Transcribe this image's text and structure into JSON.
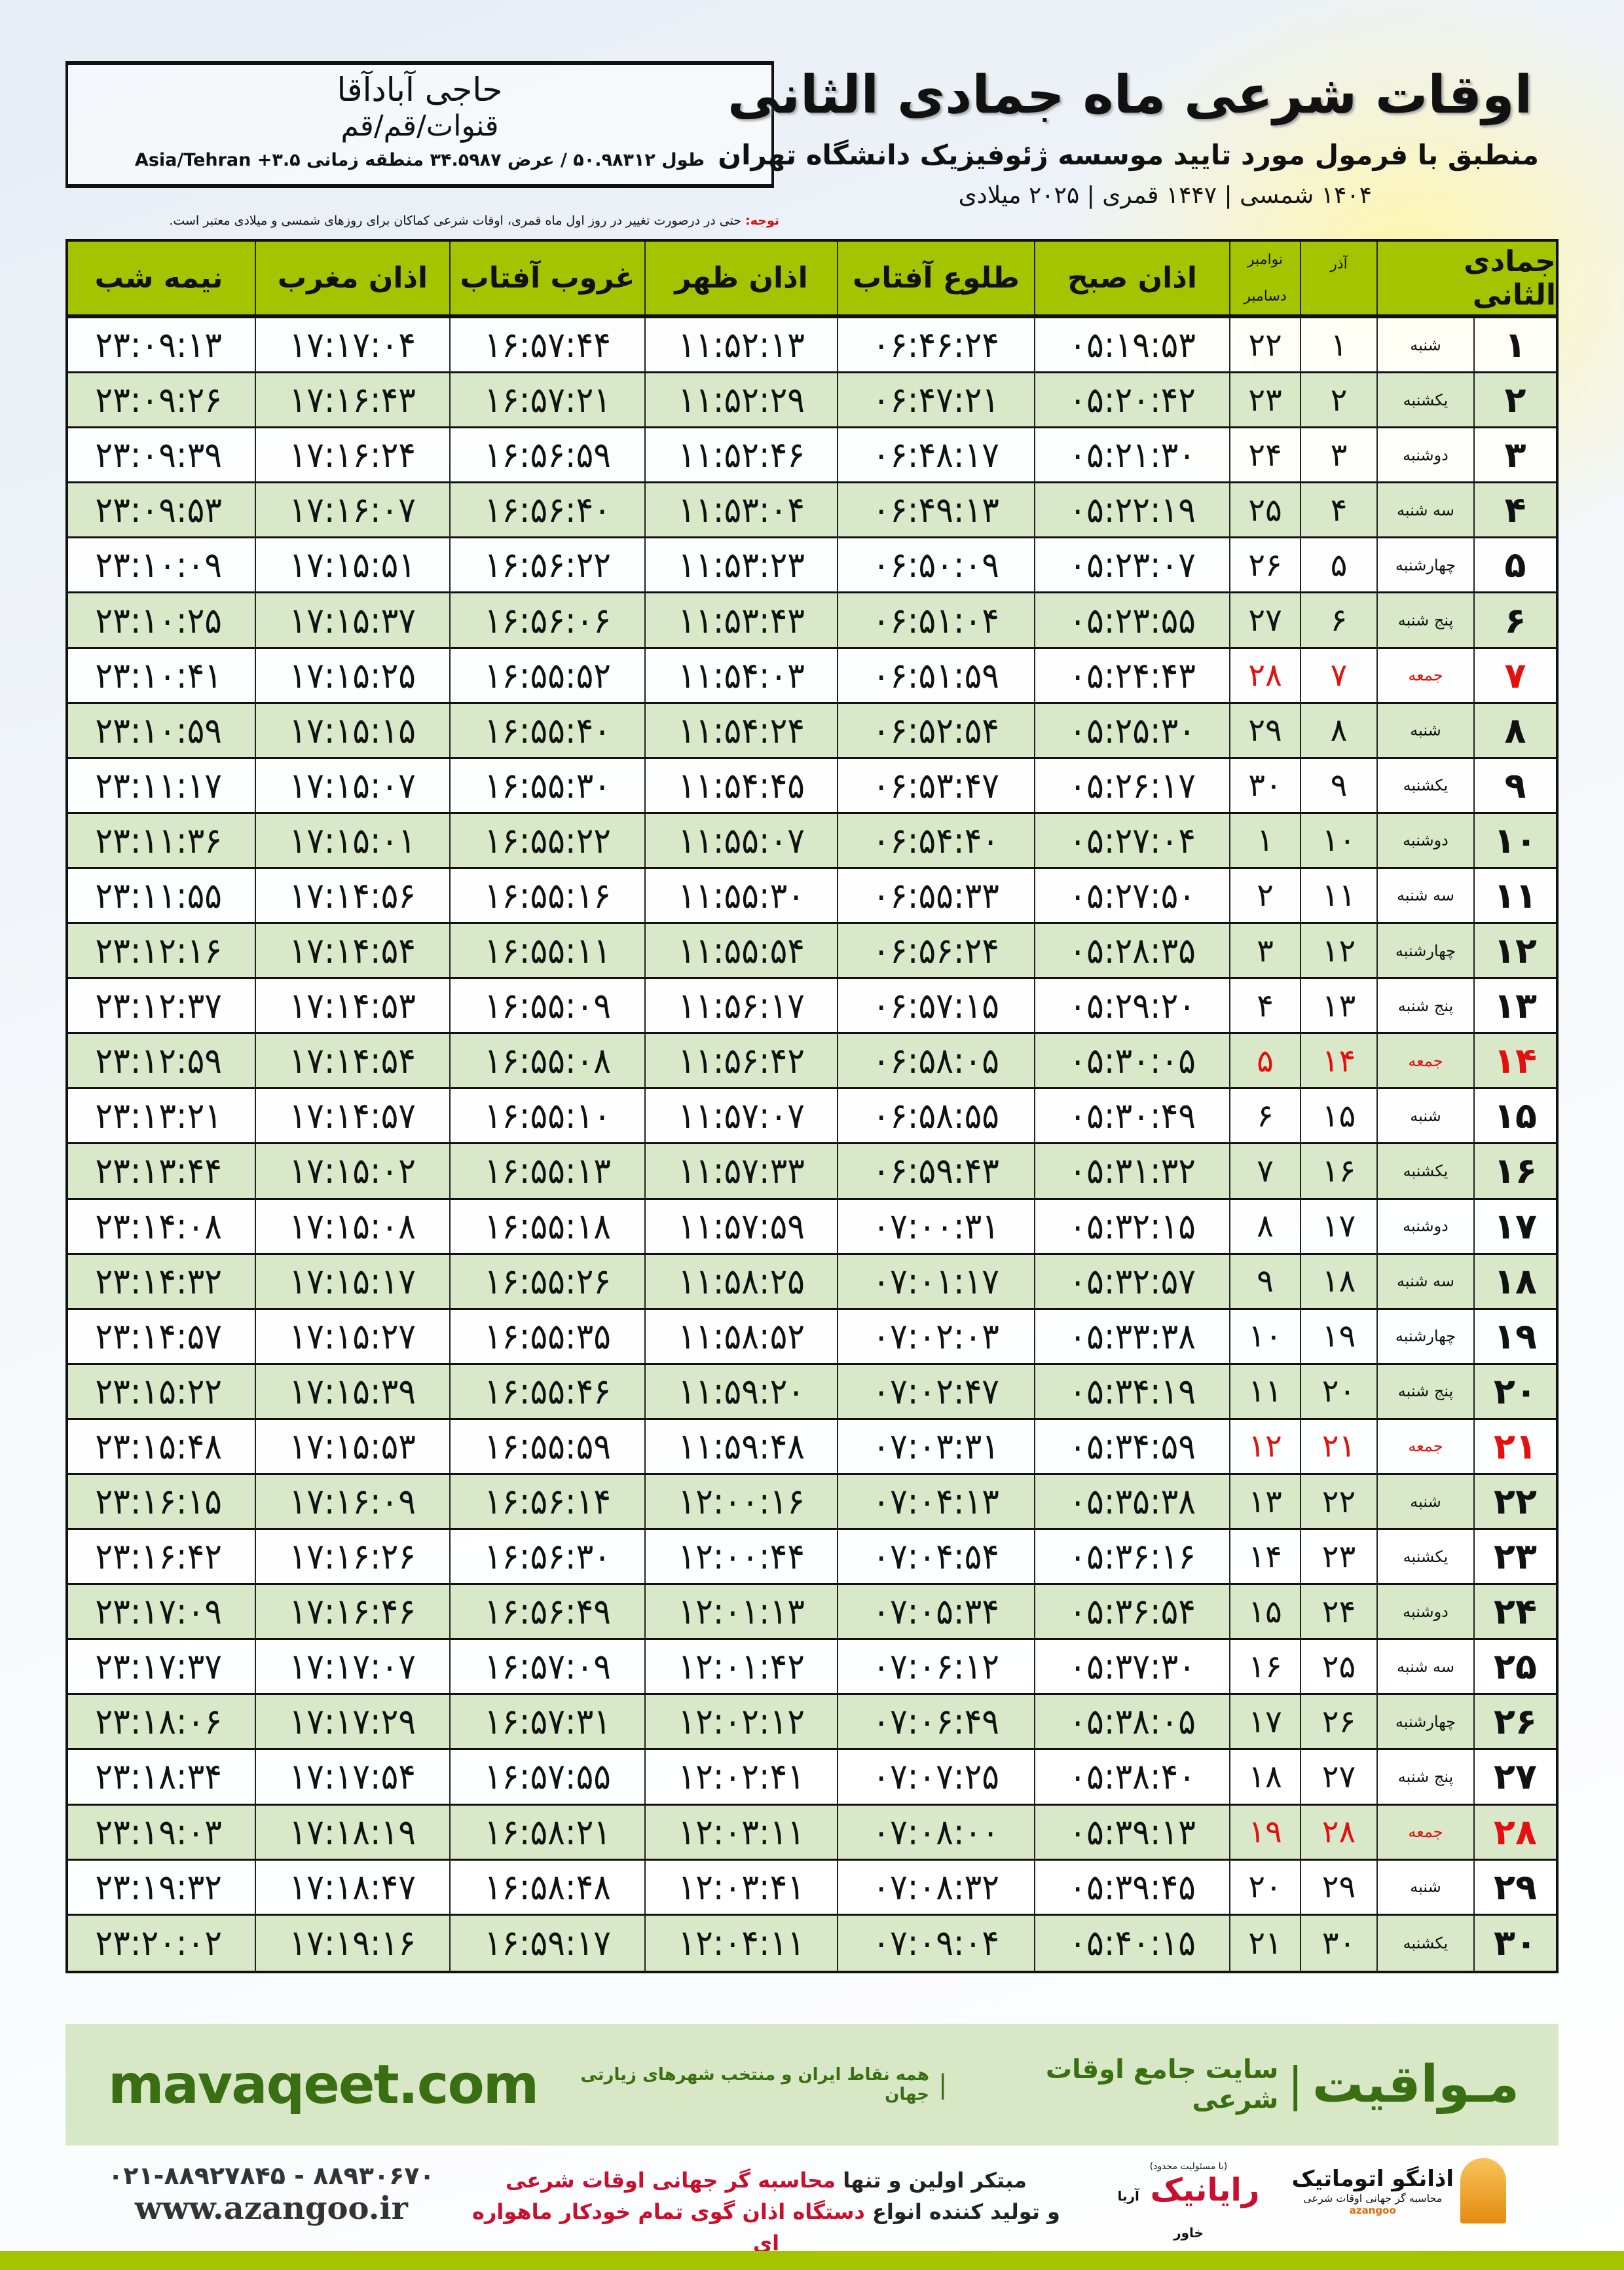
{
  "location": {
    "city": "حاجی آبادآقا",
    "province": "قنوات/قم/قم",
    "coords": "طول ۵۰.۹۸۳۱۲ / عرض ۳۴.۵۹۸۷ منطقه زمانی Asia/Tehran +۳.۵"
  },
  "header": {
    "title": "اوقات شرعی ماه جمادی الثانی",
    "subtitle": "منطبق با فرمول مورد تایید موسسه ژئوفیزیک دانشگاه تهران",
    "years": "۱۴۰۴ شمسی | ۱۴۴۷ قمری | ۲۰۲۵ میلادی"
  },
  "note": {
    "label": "توجه:",
    "text": " حتی در درصورت تغییر در روز اول ماه قمری، اوقات شرعی کماکان برای روزهای شمسی و میلادی معتبر است."
  },
  "table": {
    "columns": {
      "hijri": "جمادی الثانی",
      "shamsi": "آذر",
      "gregorian_top": "نوامبر",
      "gregorian_bottom": "دسامبر",
      "fajr": "اذان صبح",
      "sunrise": "طلوع آفتاب",
      "dhuhr": "اذان ظهر",
      "sunset": "غروب آفتاب",
      "maghrib": "اذان مغرب",
      "midnight": "نیمه شب"
    },
    "highlight_color": "#e31010",
    "rows": [
      [
        "۱",
        "شنبه",
        "۱",
        "۲۲",
        "۰۵:۱۹:۵۳",
        "۰۶:۴۶:۲۴",
        "۱۱:۵۲:۱۳",
        "۱۶:۵۷:۴۴",
        "۱۷:۱۷:۰۴",
        "۲۳:۰۹:۱۳"
      ],
      [
        "۲",
        "یکشنبه",
        "۲",
        "۲۳",
        "۰۵:۲۰:۴۲",
        "۰۶:۴۷:۲۱",
        "۱۱:۵۲:۲۹",
        "۱۶:۵۷:۲۱",
        "۱۷:۱۶:۴۳",
        "۲۳:۰۹:۲۶"
      ],
      [
        "۳",
        "دوشنبه",
        "۳",
        "۲۴",
        "۰۵:۲۱:۳۰",
        "۰۶:۴۸:۱۷",
        "۱۱:۵۲:۴۶",
        "۱۶:۵۶:۵۹",
        "۱۷:۱۶:۲۴",
        "۲۳:۰۹:۳۹"
      ],
      [
        "۴",
        "سه شنبه",
        "۴",
        "۲۵",
        "۰۵:۲۲:۱۹",
        "۰۶:۴۹:۱۳",
        "۱۱:۵۳:۰۴",
        "۱۶:۵۶:۴۰",
        "۱۷:۱۶:۰۷",
        "۲۳:۰۹:۵۳"
      ],
      [
        "۵",
        "چهارشنبه",
        "۵",
        "۲۶",
        "۰۵:۲۳:۰۷",
        "۰۶:۵۰:۰۹",
        "۱۱:۵۳:۲۳",
        "۱۶:۵۶:۲۲",
        "۱۷:۱۵:۵۱",
        "۲۳:۱۰:۰۹"
      ],
      [
        "۶",
        "پنج شنبه",
        "۶",
        "۲۷",
        "۰۵:۲۳:۵۵",
        "۰۶:۵۱:۰۴",
        "۱۱:۵۳:۴۳",
        "۱۶:۵۶:۰۶",
        "۱۷:۱۵:۳۷",
        "۲۳:۱۰:۲۵"
      ],
      [
        "۷",
        "جمعه",
        "۷",
        "۲۸",
        "۰۵:۲۴:۴۳",
        "۰۶:۵۱:۵۹",
        "۱۱:۵۴:۰۳",
        "۱۶:۵۵:۵۲",
        "۱۷:۱۵:۲۵",
        "۲۳:۱۰:۴۱"
      ],
      [
        "۸",
        "شنبه",
        "۸",
        "۲۹",
        "۰۵:۲۵:۳۰",
        "۰۶:۵۲:۵۴",
        "۱۱:۵۴:۲۴",
        "۱۶:۵۵:۴۰",
        "۱۷:۱۵:۱۵",
        "۲۳:۱۰:۵۹"
      ],
      [
        "۹",
        "یکشنبه",
        "۹",
        "۳۰",
        "۰۵:۲۶:۱۷",
        "۰۶:۵۳:۴۷",
        "۱۱:۵۴:۴۵",
        "۱۶:۵۵:۳۰",
        "۱۷:۱۵:۰۷",
        "۲۳:۱۱:۱۷"
      ],
      [
        "۱۰",
        "دوشنبه",
        "۱۰",
        "۱",
        "۰۵:۲۷:۰۴",
        "۰۶:۵۴:۴۰",
        "۱۱:۵۵:۰۷",
        "۱۶:۵۵:۲۲",
        "۱۷:۱۵:۰۱",
        "۲۳:۱۱:۳۶"
      ],
      [
        "۱۱",
        "سه شنبه",
        "۱۱",
        "۲",
        "۰۵:۲۷:۵۰",
        "۰۶:۵۵:۳۳",
        "۱۱:۵۵:۳۰",
        "۱۶:۵۵:۱۶",
        "۱۷:۱۴:۵۶",
        "۲۳:۱۱:۵۵"
      ],
      [
        "۱۲",
        "چهارشنبه",
        "۱۲",
        "۳",
        "۰۵:۲۸:۳۵",
        "۰۶:۵۶:۲۴",
        "۱۱:۵۵:۵۴",
        "۱۶:۵۵:۱۱",
        "۱۷:۱۴:۵۴",
        "۲۳:۱۲:۱۶"
      ],
      [
        "۱۳",
        "پنج شنبه",
        "۱۳",
        "۴",
        "۰۵:۲۹:۲۰",
        "۰۶:۵۷:۱۵",
        "۱۱:۵۶:۱۷",
        "۱۶:۵۵:۰۹",
        "۱۷:۱۴:۵۳",
        "۲۳:۱۲:۳۷"
      ],
      [
        "۱۴",
        "جمعه",
        "۱۴",
        "۵",
        "۰۵:۳۰:۰۵",
        "۰۶:۵۸:۰۵",
        "۱۱:۵۶:۴۲",
        "۱۶:۵۵:۰۸",
        "۱۷:۱۴:۵۴",
        "۲۳:۱۲:۵۹"
      ],
      [
        "۱۵",
        "شنبه",
        "۱۵",
        "۶",
        "۰۵:۳۰:۴۹",
        "۰۶:۵۸:۵۵",
        "۱۱:۵۷:۰۷",
        "۱۶:۵۵:۱۰",
        "۱۷:۱۴:۵۷",
        "۲۳:۱۳:۲۱"
      ],
      [
        "۱۶",
        "یکشنبه",
        "۱۶",
        "۷",
        "۰۵:۳۱:۳۲",
        "۰۶:۵۹:۴۳",
        "۱۱:۵۷:۳۳",
        "۱۶:۵۵:۱۳",
        "۱۷:۱۵:۰۲",
        "۲۳:۱۳:۴۴"
      ],
      [
        "۱۷",
        "دوشنبه",
        "۱۷",
        "۸",
        "۰۵:۳۲:۱۵",
        "۰۷:۰۰:۳۱",
        "۱۱:۵۷:۵۹",
        "۱۶:۵۵:۱۸",
        "۱۷:۱۵:۰۸",
        "۲۳:۱۴:۰۸"
      ],
      [
        "۱۸",
        "سه شنبه",
        "۱۸",
        "۹",
        "۰۵:۳۲:۵۷",
        "۰۷:۰۱:۱۷",
        "۱۱:۵۸:۲۵",
        "۱۶:۵۵:۲۶",
        "۱۷:۱۵:۱۷",
        "۲۳:۱۴:۳۲"
      ],
      [
        "۱۹",
        "چهارشنبه",
        "۱۹",
        "۱۰",
        "۰۵:۳۳:۳۸",
        "۰۷:۰۲:۰۳",
        "۱۱:۵۸:۵۲",
        "۱۶:۵۵:۳۵",
        "۱۷:۱۵:۲۷",
        "۲۳:۱۴:۵۷"
      ],
      [
        "۲۰",
        "پنج شنبه",
        "۲۰",
        "۱۱",
        "۰۵:۳۴:۱۹",
        "۰۷:۰۲:۴۷",
        "۱۱:۵۹:۲۰",
        "۱۶:۵۵:۴۶",
        "۱۷:۱۵:۳۹",
        "۲۳:۱۵:۲۲"
      ],
      [
        "۲۱",
        "جمعه",
        "۲۱",
        "۱۲",
        "۰۵:۳۴:۵۹",
        "۰۷:۰۳:۳۱",
        "۱۱:۵۹:۴۸",
        "۱۶:۵۵:۵۹",
        "۱۷:۱۵:۵۳",
        "۲۳:۱۵:۴۸"
      ],
      [
        "۲۲",
        "شنبه",
        "۲۲",
        "۱۳",
        "۰۵:۳۵:۳۸",
        "۰۷:۰۴:۱۳",
        "۱۲:۰۰:۱۶",
        "۱۶:۵۶:۱۴",
        "۱۷:۱۶:۰۹",
        "۲۳:۱۶:۱۵"
      ],
      [
        "۲۳",
        "یکشنبه",
        "۲۳",
        "۱۴",
        "۰۵:۳۶:۱۶",
        "۰۷:۰۴:۵۴",
        "۱۲:۰۰:۴۴",
        "۱۶:۵۶:۳۰",
        "۱۷:۱۶:۲۶",
        "۲۳:۱۶:۴۲"
      ],
      [
        "۲۴",
        "دوشنبه",
        "۲۴",
        "۱۵",
        "۰۵:۳۶:۵۴",
        "۰۷:۰۵:۳۴",
        "۱۲:۰۱:۱۳",
        "۱۶:۵۶:۴۹",
        "۱۷:۱۶:۴۶",
        "۲۳:۱۷:۰۹"
      ],
      [
        "۲۵",
        "سه شنبه",
        "۲۵",
        "۱۶",
        "۰۵:۳۷:۳۰",
        "۰۷:۰۶:۱۲",
        "۱۲:۰۱:۴۲",
        "۱۶:۵۷:۰۹",
        "۱۷:۱۷:۰۷",
        "۲۳:۱۷:۳۷"
      ],
      [
        "۲۶",
        "چهارشنبه",
        "۲۶",
        "۱۷",
        "۰۵:۳۸:۰۵",
        "۰۷:۰۶:۴۹",
        "۱۲:۰۲:۱۲",
        "۱۶:۵۷:۳۱",
        "۱۷:۱۷:۲۹",
        "۲۳:۱۸:۰۶"
      ],
      [
        "۲۷",
        "پنج شنبه",
        "۲۷",
        "۱۸",
        "۰۵:۳۸:۴۰",
        "۰۷:۰۷:۲۵",
        "۱۲:۰۲:۴۱",
        "۱۶:۵۷:۵۵",
        "۱۷:۱۷:۵۴",
        "۲۳:۱۸:۳۴"
      ],
      [
        "۲۸",
        "جمعه",
        "۲۸",
        "۱۹",
        "۰۵:۳۹:۱۳",
        "۰۷:۰۸:۰۰",
        "۱۲:۰۳:۱۱",
        "۱۶:۵۸:۲۱",
        "۱۷:۱۸:۱۹",
        "۲۳:۱۹:۰۳"
      ],
      [
        "۲۹",
        "شنبه",
        "۲۹",
        "۲۰",
        "۰۵:۳۹:۴۵",
        "۰۷:۰۸:۳۲",
        "۱۲:۰۳:۴۱",
        "۱۶:۵۸:۴۸",
        "۱۷:۱۸:۴۷",
        "۲۳:۱۹:۳۲"
      ],
      [
        "۳۰",
        "یکشنبه",
        "۳۰",
        "۲۱",
        "۰۵:۴۰:۱۵",
        "۰۷:۰۹:۰۴",
        "۱۲:۰۴:۱۱",
        "۱۶:۵۹:۱۷",
        "۱۷:۱۹:۱۶",
        "۲۳:۲۰:۰۲"
      ]
    ]
  },
  "banner": {
    "brand": "مـواقیت",
    "tagline": "سایت جامع اوقات شرعی",
    "sub": "همه نقاط ایران و منتخب شهرهای زیارتی جهان",
    "site": "mavaqeet.com"
  },
  "footer": {
    "phones": "۰۲۱-۸۸۹۲۷۸۴۵ - ۸۸۹۳۰۶۷۰",
    "website": "www.azangoo.ir",
    "slogan1_a": "مبتکر اولین و تنها ",
    "slogan1_b": "محاسبه گر جهانی اوقات شرعی",
    "slogan2_a": "و تولید کننده انواع ",
    "slogan2_b": "دستگاه اذان گوی تمام خودکار ماهواره ای",
    "rayanik_small": "(با مسئولیت محدود)",
    "rayanik_side": "آریا خاور",
    "rayanik_name": "رایانیک",
    "azangoo_name": "اذانگو اتوماتیک",
    "azangoo_desc": "محاسبه گر جهانی اوقات شرعی",
    "azangoo_en": "azangoo"
  }
}
